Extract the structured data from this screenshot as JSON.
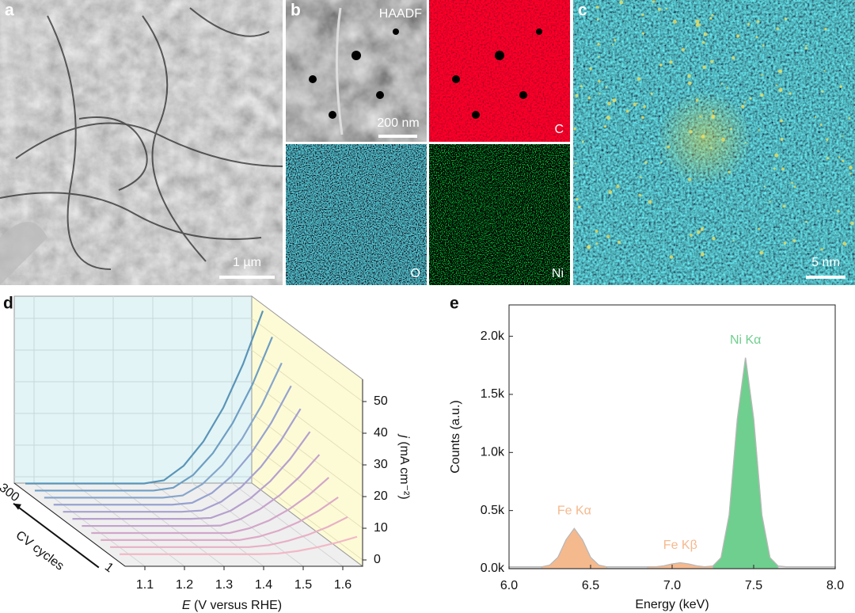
{
  "panels": {
    "a": {
      "label": "a",
      "scale_bar": "1 µm"
    },
    "b": {
      "label": "b",
      "tiles": [
        {
          "name": "HAADF",
          "scale_bar": "200 nm"
        },
        {
          "name": "C"
        },
        {
          "name": "O"
        },
        {
          "name": "Ni"
        }
      ]
    },
    "c": {
      "label": "c",
      "scale_bar": "5 nm"
    }
  },
  "chart_data": [
    {
      "type": "waterfall3d",
      "panel_label": "d",
      "xlabel_symbol": "E",
      "xlabel_unit": "(V versus RHE)",
      "ylabel_symbol": "j",
      "ylabel_unit": "(mA cm⁻²)",
      "zlabel": "CV cycles",
      "zticks": [
        1,
        300
      ],
      "xlim": [
        1.05,
        1.65
      ],
      "xticks": [
        1.1,
        1.2,
        1.3,
        1.4,
        1.5,
        1.6
      ],
      "ylim": [
        -2,
        57
      ],
      "yticks": [
        0,
        10,
        20,
        30,
        40,
        50
      ],
      "grid": true,
      "x": [
        1.05,
        1.1,
        1.15,
        1.2,
        1.25,
        1.3,
        1.35,
        1.4,
        1.45,
        1.5,
        1.55,
        1.6,
        1.65
      ],
      "series": [
        {
          "color": "#f2b8c6",
          "values": [
            0.5,
            0.5,
            0.5,
            0.5,
            0.5,
            0.5,
            0.5,
            0.5,
            0.7,
            1.5,
            2.7,
            4.2,
            6
          ]
        },
        {
          "color": "#e8b0c6",
          "values": [
            0.5,
            0.5,
            0.5,
            0.5,
            0.5,
            0.5,
            0.5,
            0.5,
            1.1,
            2.5,
            4.4,
            6.9,
            10
          ]
        },
        {
          "color": "#ddaac8",
          "values": [
            0.5,
            0.5,
            0.5,
            0.5,
            0.5,
            0.5,
            0.5,
            0.5,
            1.6,
            3.5,
            6.2,
            9.7,
            14
          ]
        },
        {
          "color": "#d2a6ca",
          "values": [
            0.5,
            0.5,
            0.5,
            0.5,
            0.5,
            0.5,
            0.5,
            0.5,
            2,
            4.5,
            8,
            12.5,
            18
          ]
        },
        {
          "color": "#c4a2cc",
          "values": [
            0.5,
            0.5,
            0.5,
            0.5,
            0.5,
            0.5,
            0.5,
            0.6,
            2.6,
            5.8,
            10.2,
            16,
            23
          ]
        },
        {
          "color": "#b6a0ce",
          "values": [
            0.5,
            0.5,
            0.5,
            0.5,
            0.5,
            0.5,
            0.5,
            0.8,
            3.1,
            7,
            12.4,
            19.4,
            28
          ]
        },
        {
          "color": "#a6a0d0",
          "values": [
            0.5,
            0.5,
            0.5,
            0.5,
            0.5,
            0.5,
            0.5,
            0.9,
            3.7,
            8.3,
            14.7,
            22.9,
            33
          ]
        },
        {
          "color": "#96a2d0",
          "values": [
            0.5,
            0.5,
            0.5,
            0.5,
            0.5,
            0.5,
            0.5,
            1.1,
            4.2,
            9.5,
            16.9,
            26.4,
            38
          ]
        },
        {
          "color": "#86a6cc",
          "values": [
            0.5,
            0.5,
            0.5,
            0.5,
            0.5,
            0.5,
            0.5,
            1.2,
            4.8,
            10.8,
            19.1,
            29.8,
            43
          ]
        },
        {
          "color": "#6e9ec4",
          "values": [
            0.5,
            0.5,
            0.5,
            0.5,
            0.5,
            0.5,
            0.5,
            1.4,
            5.4,
            12.3,
            21.8,
            34,
            49
          ]
        },
        {
          "color": "#5a94b8",
          "values": [
            0.5,
            0.5,
            0.5,
            0.5,
            0.5,
            0.5,
            0.5,
            1.5,
            6.1,
            13.8,
            24.4,
            38.2,
            55
          ]
        }
      ]
    },
    {
      "type": "spectrum",
      "panel_label": "e",
      "xlabel": "Energy (keV)",
      "ylabel": "Counts (a.u.)",
      "xlim": [
        6.0,
        8.0
      ],
      "xticks": [
        {
          "value": 6,
          "label": "6.0"
        },
        {
          "value": 6.5,
          "label": "6.5"
        },
        {
          "value": 7,
          "label": "7.0"
        },
        {
          "value": 7.5,
          "label": "7.5"
        },
        {
          "value": 8,
          "label": "8.0"
        }
      ],
      "ylim": [
        0,
        2270
      ],
      "yticks": [
        {
          "value": 0,
          "label": "0.0k"
        },
        {
          "value": 500,
          "label": "0.5k"
        },
        {
          "value": 1000,
          "label": "1.0k"
        },
        {
          "value": 1500,
          "label": "1.5k"
        },
        {
          "value": 2000,
          "label": "2.0k"
        }
      ],
      "color": "#b8b8b8",
      "x": [
        6.0,
        6.05,
        6.1,
        6.15,
        6.2,
        6.25,
        6.3,
        6.35,
        6.4,
        6.45,
        6.5,
        6.55,
        6.6,
        6.65,
        6.7,
        6.75,
        6.8,
        6.85,
        6.9,
        6.95,
        7.0,
        7.05,
        7.1,
        7.15,
        7.2,
        7.25,
        7.3,
        7.35,
        7.4,
        7.45,
        7.5,
        7.55,
        7.6,
        7.65,
        7.7,
        7.75,
        7.8,
        7.85,
        7.9,
        7.95,
        8.0
      ],
      "values": [
        15,
        15,
        15,
        15,
        15,
        30,
        97,
        248,
        345,
        248,
        97,
        30,
        15,
        15,
        15,
        15,
        15,
        15,
        15,
        24,
        40,
        50,
        40,
        24,
        15,
        22,
        94,
        463,
        1288,
        1815,
        1288,
        463,
        94,
        22,
        15,
        15,
        15,
        15,
        15,
        15,
        15
      ],
      "annotations": [
        {
          "text": "Fe Kα",
          "x": 6.4,
          "color": "#f5b98e"
        },
        {
          "text": "Fe Kβ",
          "x": 7.05,
          "color": "#f5b98e"
        },
        {
          "text": "Ni Kα",
          "x": 7.45,
          "color": "#6fcf8e"
        }
      ]
    }
  ]
}
